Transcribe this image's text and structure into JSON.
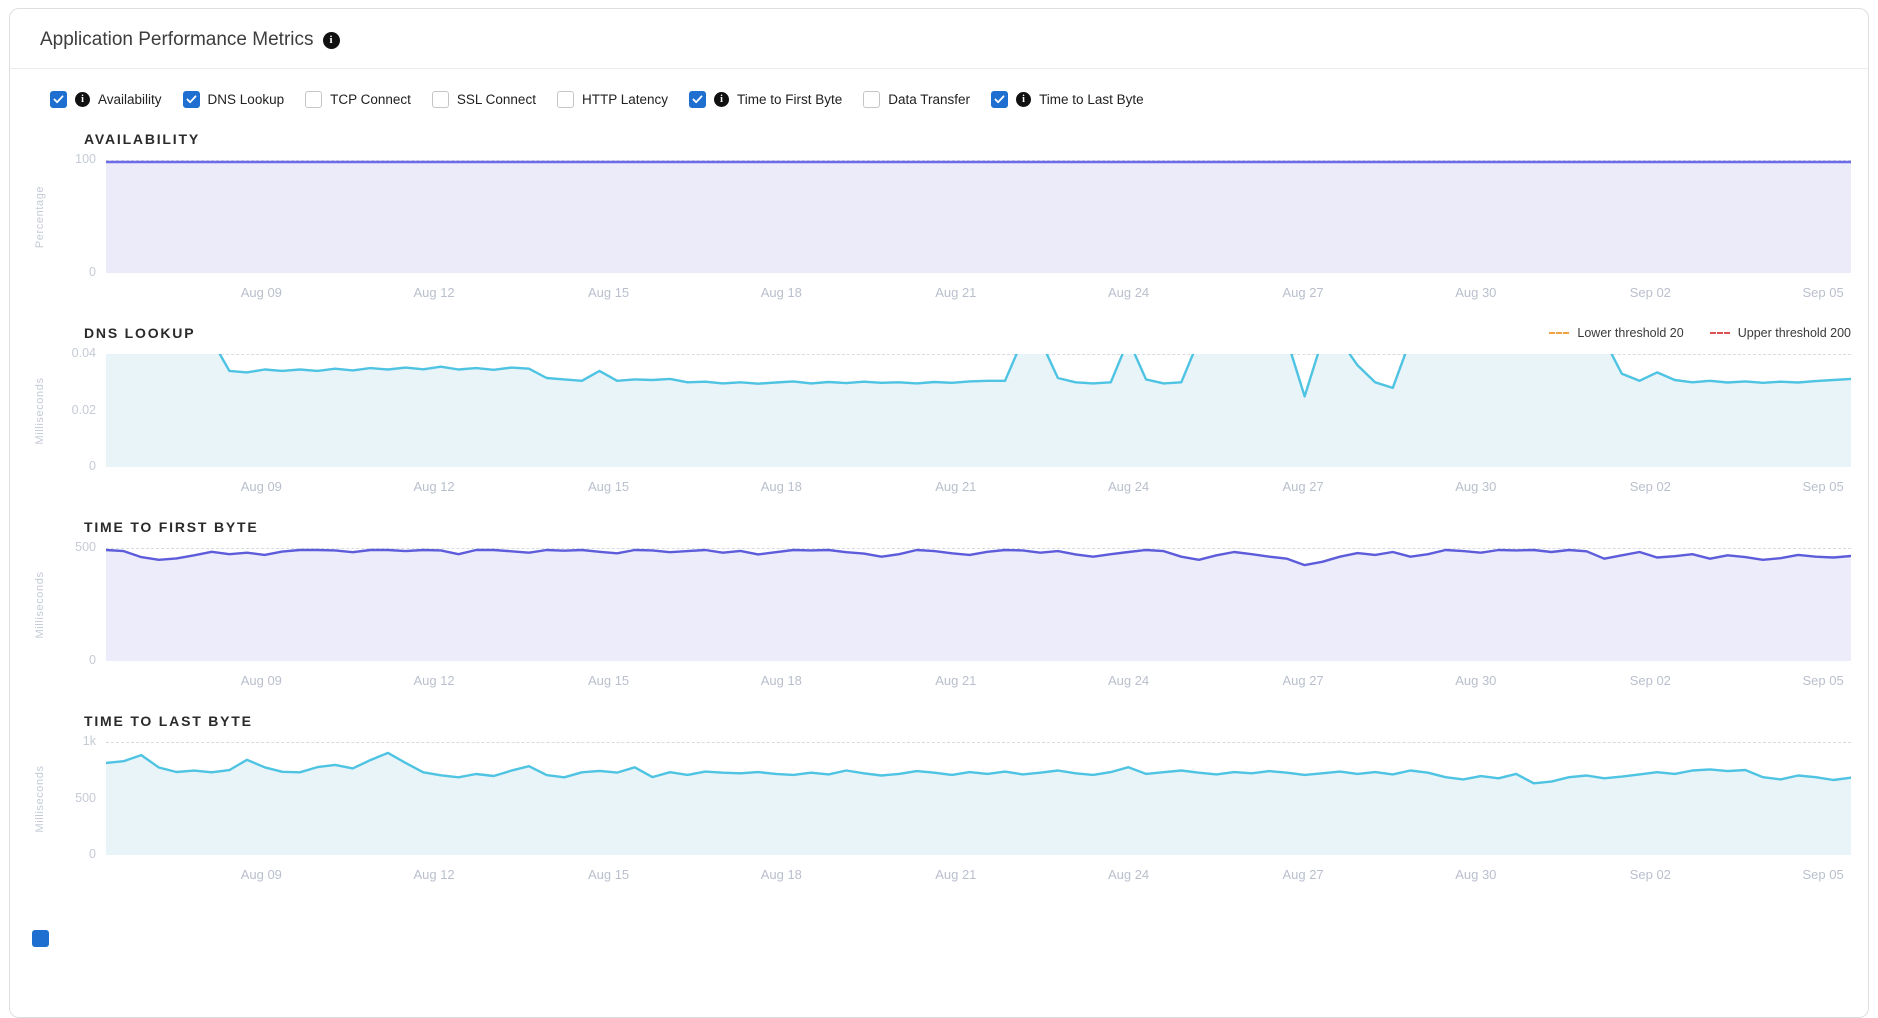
{
  "header": {
    "title": "Application Performance Metrics"
  },
  "filters": {
    "items": [
      {
        "label": "Availability",
        "checked": true,
        "info": true
      },
      {
        "label": "DNS Lookup",
        "checked": true,
        "info": false
      },
      {
        "label": "TCP Connect",
        "checked": false,
        "info": false
      },
      {
        "label": "SSL Connect",
        "checked": false,
        "info": false
      },
      {
        "label": "HTTP Latency",
        "checked": false,
        "info": false
      },
      {
        "label": "Time to First Byte",
        "checked": true,
        "info": true
      },
      {
        "label": "Data Transfer",
        "checked": false,
        "info": false
      },
      {
        "label": "Time to Last Byte",
        "checked": true,
        "info": true
      }
    ]
  },
  "colors": {
    "checkbox_checked": "#1e6fd0",
    "checkbox_border": "#c6c6c6",
    "info_icon_bg": "#111111",
    "card_border": "#dcdee2",
    "gridline": "#d8dbe0",
    "tick_text": "#c5cad5",
    "xlabel_text": "#b9bfcc",
    "availability_line": "#6c6ce6",
    "availability_fill": "#ecebfa",
    "cyan_line": "#4ec3e2",
    "cyan_fill": "#e9f4f9",
    "ttfb_line": "#5d5cda",
    "ttfb_fill": "#edecfa",
    "lower_threshold_color": "#f2a341",
    "upper_threshold_color": "#df5050"
  },
  "xaxis": {
    "labels": [
      "Aug 09",
      "Aug 12",
      "Aug 15",
      "Aug 18",
      "Aug 21",
      "Aug 24",
      "Aug 27",
      "Aug 30",
      "Sep 02",
      "Sep 05"
    ],
    "positions_pct": [
      8.9,
      18.8,
      28.8,
      38.7,
      48.7,
      58.6,
      68.6,
      78.5,
      88.5,
      98.4
    ]
  },
  "chart_data": [
    {
      "type": "area",
      "title": "AVAILABILITY",
      "ylabel": "Percentage",
      "ylim": [
        0,
        100
      ],
      "ymax": 100,
      "top_pad": 2,
      "grid": true,
      "legend_position": "none",
      "yticks": [
        {
          "label": "100",
          "pos": 0
        },
        {
          "label": "0",
          "pos": 1
        }
      ],
      "line_color": "#6c6ce6",
      "fill_color": "#ecebfa",
      "values": [
        100,
        100
      ]
    },
    {
      "type": "area",
      "title": "DNS LOOKUP",
      "ylabel": "Milliseconds",
      "ylim": [
        0,
        0.04
      ],
      "ymax": 0.04,
      "top_pad": 0,
      "grid": true,
      "legend_position": "top-right",
      "legend": [
        {
          "label": "Lower threshold 20",
          "color": "#f2a341"
        },
        {
          "label": "Upper threshold 200",
          "color": "#df5050"
        }
      ],
      "yticks": [
        {
          "label": "0.04",
          "pos": 0
        },
        {
          "label": "0.02",
          "pos": 0.5
        },
        {
          "label": "0",
          "pos": 1
        }
      ],
      "line_color": "#4ec3e2",
      "fill_color": "#e9f4f9",
      "values": [
        0.045,
        0.045,
        0.045,
        0.045,
        0.045,
        0.045,
        0.045,
        0.034,
        0.0335,
        0.0345,
        0.034,
        0.0345,
        0.034,
        0.0348,
        0.0342,
        0.035,
        0.0345,
        0.0352,
        0.0346,
        0.0355,
        0.0345,
        0.035,
        0.0344,
        0.0352,
        0.0348,
        0.0315,
        0.031,
        0.0305,
        0.034,
        0.0305,
        0.031,
        0.0308,
        0.0312,
        0.03,
        0.0302,
        0.0296,
        0.03,
        0.0295,
        0.0299,
        0.0303,
        0.0296,
        0.0301,
        0.0297,
        0.0302,
        0.0298,
        0.03,
        0.0296,
        0.0301,
        0.0298,
        0.0303,
        0.0305,
        0.0305,
        0.045,
        0.045,
        0.0315,
        0.03,
        0.0296,
        0.03,
        0.045,
        0.031,
        0.0296,
        0.03,
        0.045,
        0.045,
        0.045,
        0.045,
        0.045,
        0.045,
        0.025,
        0.045,
        0.045,
        0.036,
        0.03,
        0.028,
        0.045,
        0.045,
        0.045,
        0.045,
        0.045,
        0.045,
        0.045,
        0.045,
        0.045,
        0.045,
        0.045,
        0.045,
        0.033,
        0.0305,
        0.0335,
        0.0308,
        0.03,
        0.0305,
        0.0299,
        0.0303,
        0.0298,
        0.0302,
        0.0299,
        0.0304,
        0.0308,
        0.0312
      ]
    },
    {
      "type": "area",
      "title": "TIME TO FIRST BYTE",
      "ylabel": "Milliseconds",
      "ylim": [
        0,
        500
      ],
      "ymax": 500,
      "top_pad": 2,
      "grid": true,
      "legend_position": "none",
      "yticks": [
        {
          "label": "500",
          "pos": 0
        },
        {
          "label": "0",
          "pos": 1
        }
      ],
      "line_color": "#5d5cda",
      "fill_color": "#edecfa",
      "values": [
        500,
        495,
        468,
        456,
        462,
        476,
        492,
        481,
        488,
        478,
        493,
        500,
        500,
        498,
        490,
        500,
        500,
        495,
        500,
        498,
        481,
        500,
        500,
        494,
        488,
        500,
        497,
        500,
        492,
        485,
        500,
        498,
        490,
        495,
        500,
        488,
        496,
        480,
        490,
        500,
        498,
        500,
        490,
        484,
        470,
        481,
        500,
        495,
        485,
        478,
        492,
        500,
        498,
        488,
        495,
        480,
        470,
        481,
        491,
        500,
        495,
        470,
        456,
        476,
        491,
        481,
        470,
        461,
        432,
        447,
        470,
        486,
        478,
        491,
        470,
        481,
        500,
        495,
        488,
        500,
        498,
        500,
        491,
        500,
        494,
        461,
        476,
        491,
        466,
        472,
        481,
        461,
        476,
        468,
        456,
        463,
        478,
        470,
        466,
        473
      ]
    },
    {
      "type": "area",
      "title": "TIME TO LAST BYTE",
      "ylabel": "Milliseconds",
      "ylim": [
        0,
        1000
      ],
      "ymax": 1000,
      "top_pad": 2,
      "grid": true,
      "legend_position": "none",
      "yticks": [
        {
          "label": "1k",
          "pos": 0
        },
        {
          "label": "500",
          "pos": 0.5
        },
        {
          "label": "0",
          "pos": 1
        }
      ],
      "line_color": "#4ec3e2",
      "fill_color": "#e9f4f9",
      "values": [
        830,
        845,
        900,
        788,
        748,
        760,
        745,
        765,
        858,
        790,
        750,
        745,
        792,
        812,
        780,
        855,
        920,
        830,
        745,
        718,
        700,
        730,
        712,
        760,
        800,
        720,
        700,
        745,
        758,
        742,
        790,
        702,
        746,
        722,
        751,
        741,
        736,
        747,
        731,
        722,
        741,
        726,
        761,
        736,
        716,
        731,
        756,
        741,
        722,
        747,
        731,
        751,
        726,
        741,
        761,
        736,
        722,
        747,
        791,
        731,
        746,
        761,
        741,
        726,
        747,
        736,
        756,
        741,
        722,
        736,
        751,
        731,
        747,
        726,
        761,
        741,
        701,
        681,
        711,
        691,
        731,
        646,
        661,
        701,
        716,
        691,
        706,
        726,
        746,
        731,
        761,
        771,
        756,
        766,
        701,
        681,
        716,
        701,
        676,
        696
      ]
    }
  ]
}
